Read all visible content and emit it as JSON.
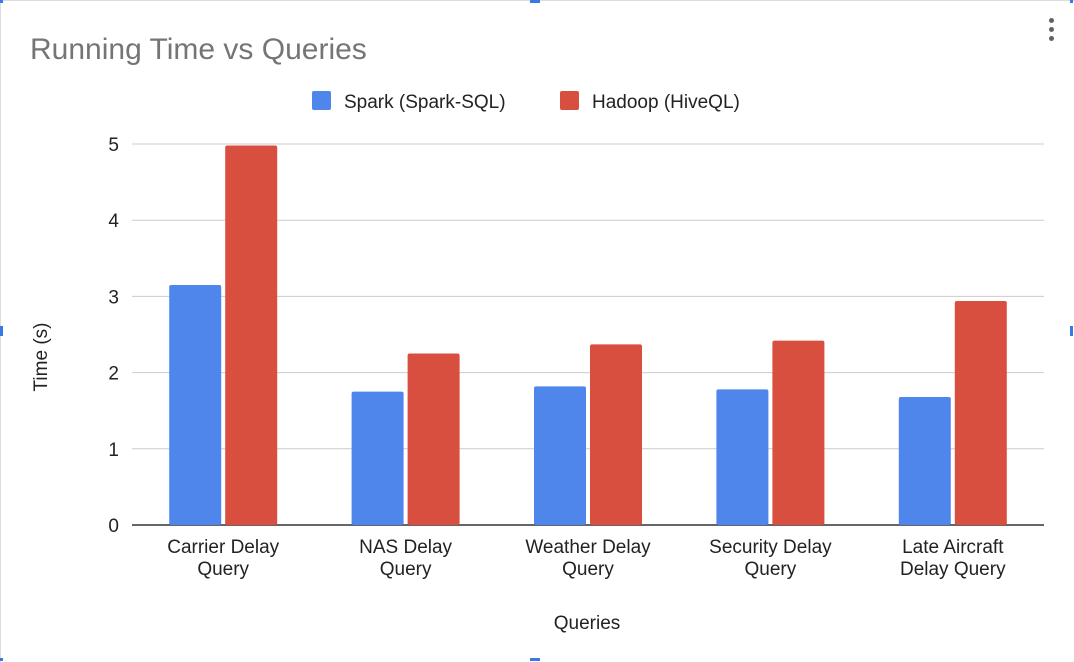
{
  "chart_data": {
    "type": "bar",
    "title": "Running Time vs Queries",
    "xlabel": "Queries",
    "ylabel": "Time (s)",
    "ylim": [
      0,
      5
    ],
    "yticks": [
      "0",
      "1",
      "2",
      "3",
      "4",
      "5"
    ],
    "categories": [
      [
        "Carrier Delay",
        "Query"
      ],
      [
        "NAS Delay",
        "Query"
      ],
      [
        "Weather Delay",
        "Query"
      ],
      [
        "Security Delay",
        "Query"
      ],
      [
        "Late Aircraft",
        "Delay Query"
      ]
    ],
    "series": [
      {
        "name": "Spark (Spark-SQL)",
        "color": "#4f86ec",
        "values": [
          3.15,
          1.75,
          1.82,
          1.78,
          1.68
        ]
      },
      {
        "name": "Hadoop (HiveQL)",
        "color": "#d94f3f",
        "values": [
          4.98,
          2.25,
          2.37,
          2.42,
          2.94
        ]
      }
    ],
    "grid": true,
    "legend_position": "top-center"
  },
  "ui": {
    "menu_icon": "more-vert-icon"
  }
}
